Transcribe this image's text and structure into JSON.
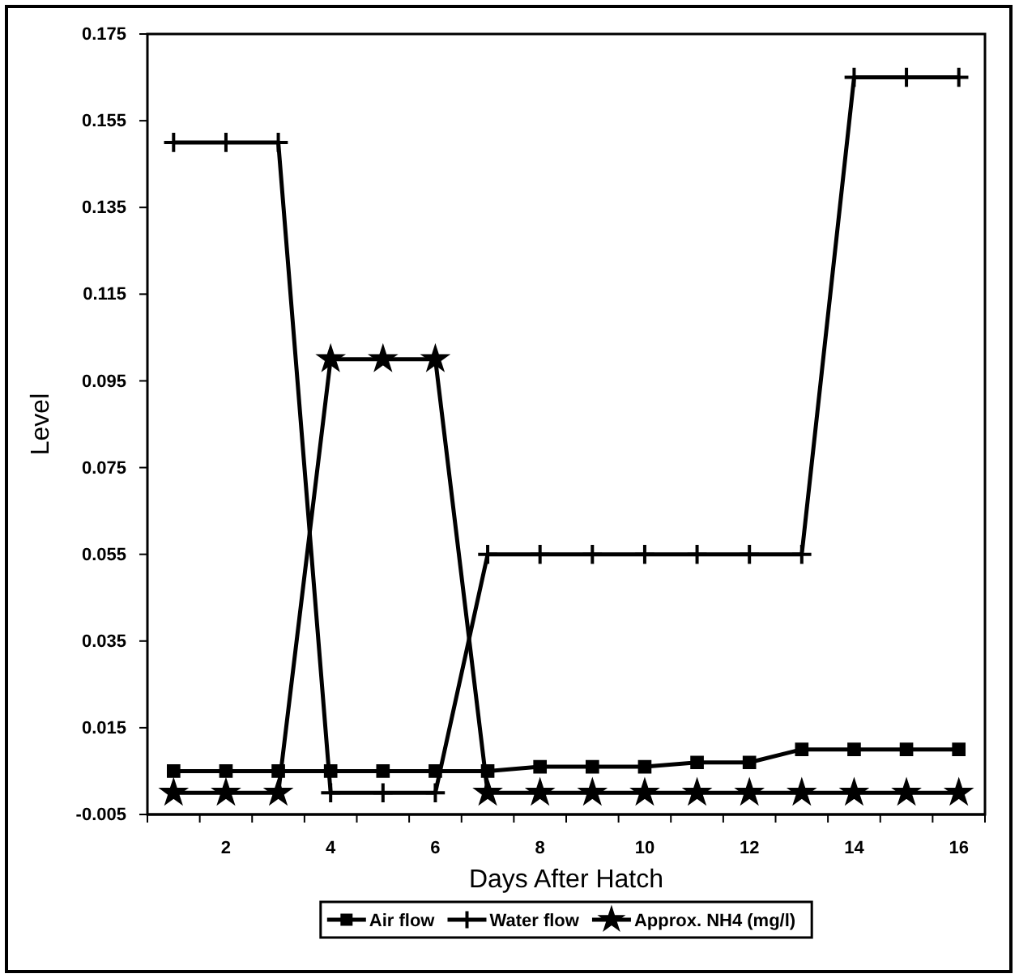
{
  "chart_data": {
    "type": "line",
    "xlabel": "Days After Hatch",
    "ylabel": "Level",
    "categories": [
      null,
      "2",
      null,
      "4",
      null,
      "6",
      null,
      "8",
      null,
      "10",
      null,
      "12",
      null,
      "14",
      null,
      "16"
    ],
    "series": [
      {
        "name": "Air flow",
        "color": "#000000",
        "marker": "square",
        "values": [
          0.005,
          0.005,
          0.005,
          0.005,
          0.005,
          0.005,
          0.005,
          0.006,
          0.006,
          0.006,
          0.007,
          0.007,
          0.01,
          0.01,
          0.01,
          0.01
        ]
      },
      {
        "name": "Water flow",
        "color": "#000000",
        "marker": "cross",
        "values": [
          0.15,
          0.15,
          0.15,
          0,
          0,
          0,
          0.055,
          0.055,
          0.055,
          0.055,
          0.055,
          0.055,
          0.055,
          0.165,
          0.165,
          0.165
        ]
      },
      {
        "name": "Approx. NH4 (mg/l)",
        "color": "#000000",
        "marker": "star",
        "values": [
          0,
          0,
          0,
          0.1,
          0.1,
          0.1,
          0,
          0,
          0,
          0,
          0,
          0,
          0,
          0,
          0,
          0
        ]
      }
    ],
    "ylim": [
      -0.005,
      0.175
    ],
    "yticks": [
      -0.005,
      0.015,
      0.035,
      0.055,
      0.075,
      0.095,
      0.115,
      0.135,
      0.155,
      0.175
    ],
    "grid": false,
    "legend": "bottom",
    "line_style": "solid"
  }
}
